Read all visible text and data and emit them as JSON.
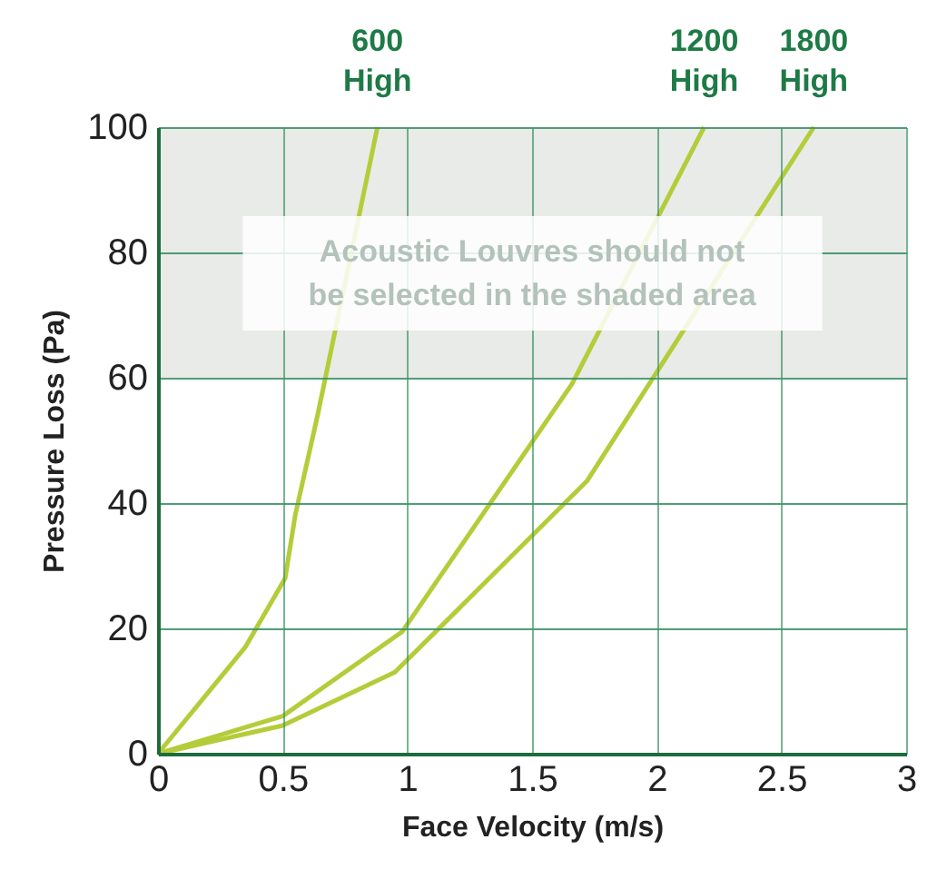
{
  "chart_data": {
    "type": "line",
    "xlabel": "Face Velocity (m/s)",
    "ylabel": "Pressure Loss (Pa)",
    "xlim": [
      0,
      3
    ],
    "xticks": [
      0,
      0.5,
      1,
      1.5,
      2,
      2.5,
      3
    ],
    "ylim": [
      0,
      100
    ],
    "yticks": [
      0,
      20,
      40,
      60,
      80,
      100
    ],
    "grid": true,
    "legend": false,
    "line_style": "solid",
    "marker": "none",
    "bands": [
      {
        "axis": "y",
        "from": 60,
        "to": 100,
        "label": "Acoustic Louvres should not be selected in the shaded area",
        "color": "#e8ebe8"
      }
    ],
    "series": [
      {
        "name": "600 High",
        "color": "#b5cc3a",
        "x": [
          0,
          0.35,
          0.51,
          0.55,
          0.64,
          0.88
        ],
        "values": [
          0,
          17,
          28,
          38,
          54,
          100
        ]
      },
      {
        "name": "1200 High",
        "color": "#b5cc3a",
        "x": [
          0,
          0.5,
          0.98,
          1.66,
          2.19
        ],
        "values": [
          0,
          6,
          19.5,
          59,
          100
        ]
      },
      {
        "name": "1800 High",
        "color": "#b5cc3a",
        "x": [
          0,
          0.5,
          0.95,
          1.72,
          2.63
        ],
        "values": [
          0,
          4.5,
          13,
          43.5,
          100
        ]
      }
    ]
  }
}
